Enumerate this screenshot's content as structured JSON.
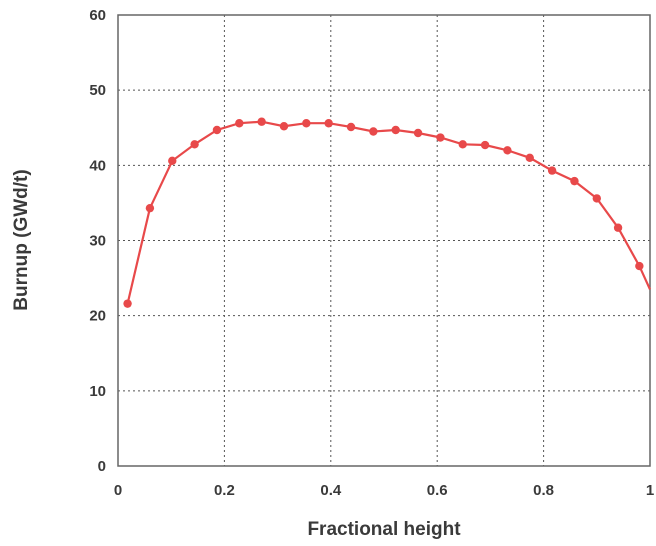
{
  "chart_data": {
    "type": "line",
    "title": "",
    "xlabel": "Fractional height",
    "ylabel": "Burnup (GWd/t)",
    "xlim": [
      0,
      1
    ],
    "ylim": [
      0,
      60
    ],
    "x_ticks": [
      0,
      0.2,
      0.4,
      0.6,
      0.8,
      1
    ],
    "x_tick_labels": [
      "0",
      "0.2",
      "0.4",
      "0.6",
      "0.8",
      "1"
    ],
    "y_ticks": [
      0,
      10,
      20,
      30,
      40,
      50,
      60
    ],
    "y_tick_labels": [
      "0",
      "10",
      "20",
      "30",
      "40",
      "50",
      "60"
    ],
    "grid": true,
    "legend": "none",
    "series": [
      {
        "color": "#e8494a",
        "marker": "circle",
        "x": [
          0.018,
          0.06,
          0.102,
          0.144,
          0.186,
          0.228,
          0.27,
          0.312,
          0.354,
          0.396,
          0.438,
          0.48,
          0.522,
          0.564,
          0.606,
          0.648,
          0.69,
          0.732,
          0.774,
          0.816,
          0.858,
          0.9,
          0.94,
          0.98
        ],
        "y": [
          21.6,
          34.3,
          40.6,
          42.8,
          44.7,
          45.6,
          45.8,
          45.2,
          45.6,
          45.6,
          45.1,
          44.5,
          44.7,
          44.3,
          43.7,
          42.8,
          42.7,
          42.0,
          41.0,
          39.3,
          37.9,
          35.6,
          31.7,
          26.6
        ]
      }
    ],
    "line_end": {
      "x": 1.0,
      "y": 23.5
    }
  }
}
